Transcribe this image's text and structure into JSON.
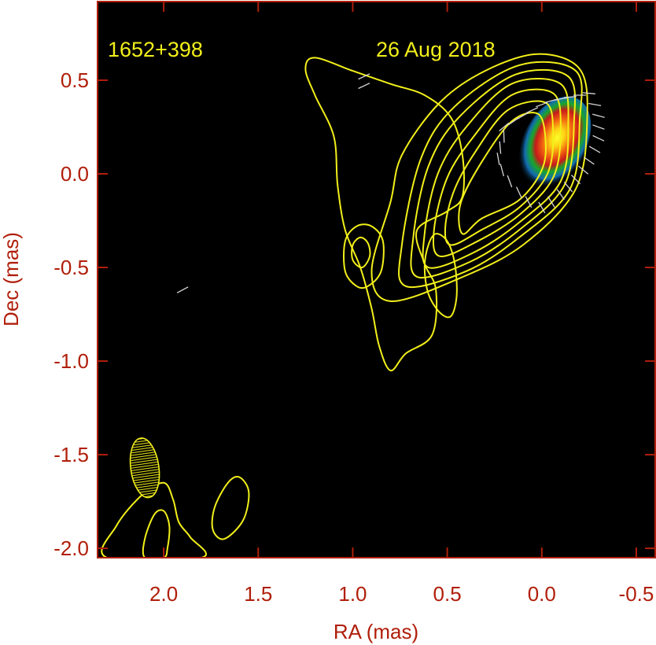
{
  "chart_data": {
    "type": "contour_map",
    "source_label": "1652+398",
    "date_label": "26 Aug 2018",
    "xlabel": "RA (mas)",
    "ylabel": "Dec (mas)",
    "xlim": [
      2.35,
      -0.6
    ],
    "ylim": [
      -2.05,
      0.92
    ],
    "x_ticks": [
      {
        "value": 2.0,
        "label": "2.0"
      },
      {
        "value": 1.5,
        "label": "1.5"
      },
      {
        "value": 1.0,
        "label": "1.0"
      },
      {
        "value": 0.5,
        "label": "0.5"
      },
      {
        "value": 0.0,
        "label": "0.0"
      },
      {
        "value": -0.5,
        "label": "-0.5"
      }
    ],
    "y_ticks": [
      {
        "value": 0.5,
        "label": "0.5"
      },
      {
        "value": 0.0,
        "label": "0.0"
      },
      {
        "value": -0.5,
        "label": "-0.5"
      },
      {
        "value": -1.0,
        "label": "-1.0"
      },
      {
        "value": -1.5,
        "label": "-1.5"
      },
      {
        "value": -2.0,
        "label": "-2.0"
      }
    ],
    "core_peak": {
      "ra": -0.07,
      "dec": 0.17
    },
    "beam": {
      "ra": 2.1,
      "dec": -1.57,
      "major_mas": 0.32,
      "minor_mas": 0.15,
      "pa_deg": -8
    },
    "contours": [
      {
        "name": "core-contour-1",
        "points": [
          [
            0.42,
            -0.32
          ],
          [
            0.32,
            -0.24
          ],
          [
            0.12,
            -0.14
          ],
          [
            0.0,
            0.02
          ],
          [
            -0.02,
            0.18
          ],
          [
            0.02,
            0.32
          ],
          [
            0.16,
            0.28
          ],
          [
            0.32,
            0.06
          ],
          [
            0.43,
            -0.16
          ]
        ]
      },
      {
        "name": "core-contour-2",
        "points": [
          [
            0.48,
            -0.38
          ],
          [
            0.32,
            -0.3
          ],
          [
            0.12,
            -0.18
          ],
          [
            -0.03,
            0.0
          ],
          [
            -0.06,
            0.22
          ],
          [
            -0.02,
            0.38
          ],
          [
            0.18,
            0.34
          ],
          [
            0.35,
            0.12
          ],
          [
            0.46,
            -0.08
          ],
          [
            0.51,
            -0.28
          ]
        ]
      },
      {
        "name": "core-contour-3",
        "points": [
          [
            0.54,
            -0.44
          ],
          [
            0.34,
            -0.36
          ],
          [
            0.12,
            -0.22
          ],
          [
            -0.06,
            -0.02
          ],
          [
            -0.1,
            0.24
          ],
          [
            -0.06,
            0.43
          ],
          [
            0.16,
            0.42
          ],
          [
            0.36,
            0.2
          ],
          [
            0.5,
            -0.02
          ],
          [
            0.57,
            -0.3
          ]
        ]
      },
      {
        "name": "core-contour-4",
        "points": [
          [
            0.6,
            -0.5
          ],
          [
            0.36,
            -0.42
          ],
          [
            0.12,
            -0.26
          ],
          [
            -0.1,
            -0.04
          ],
          [
            -0.14,
            0.26
          ],
          [
            -0.1,
            0.48
          ],
          [
            0.16,
            0.48
          ],
          [
            0.4,
            0.25
          ],
          [
            0.55,
            0.0
          ],
          [
            0.62,
            -0.32
          ]
        ]
      },
      {
        "name": "core-contour-5",
        "points": [
          [
            0.66,
            -0.55
          ],
          [
            0.38,
            -0.47
          ],
          [
            0.12,
            -0.3
          ],
          [
            -0.12,
            -0.06
          ],
          [
            -0.17,
            0.27
          ],
          [
            -0.14,
            0.52
          ],
          [
            0.14,
            0.53
          ],
          [
            0.44,
            0.3
          ],
          [
            0.6,
            0.04
          ],
          [
            0.68,
            -0.34
          ]
        ]
      },
      {
        "name": "core-contour-6",
        "points": [
          [
            0.72,
            -0.6
          ],
          [
            0.4,
            -0.52
          ],
          [
            0.12,
            -0.34
          ],
          [
            -0.15,
            -0.08
          ],
          [
            -0.2,
            0.28
          ],
          [
            -0.18,
            0.55
          ],
          [
            0.12,
            0.58
          ],
          [
            0.46,
            0.36
          ],
          [
            0.64,
            0.08
          ],
          [
            0.74,
            -0.38
          ]
        ]
      },
      {
        "name": "core-contour-7",
        "points": [
          [
            0.8,
            -0.68
          ],
          [
            0.44,
            -0.56
          ],
          [
            0.1,
            -0.38
          ],
          [
            -0.18,
            -0.08
          ],
          [
            -0.24,
            0.3
          ],
          [
            -0.2,
            0.56
          ],
          [
            0.02,
            0.64
          ],
          [
            0.3,
            0.55
          ],
          [
            0.54,
            0.38
          ],
          [
            0.74,
            0.1
          ],
          [
            0.8,
            -0.15
          ],
          [
            0.9,
            -0.52
          ]
        ]
      },
      {
        "name": "outer-jet-contour",
        "points": [
          [
            0.8,
            -1.05
          ],
          [
            0.72,
            -0.96
          ],
          [
            0.58,
            -0.86
          ],
          [
            0.56,
            -0.62
          ],
          [
            0.62,
            -0.48
          ],
          [
            0.66,
            -0.3
          ],
          [
            0.5,
            -0.2
          ],
          [
            0.42,
            -0.12
          ],
          [
            0.42,
            0.1
          ],
          [
            0.48,
            0.3
          ],
          [
            0.62,
            0.42
          ],
          [
            0.8,
            0.48
          ],
          [
            1.0,
            0.55
          ],
          [
            1.2,
            0.62
          ],
          [
            1.25,
            0.56
          ],
          [
            1.2,
            0.42
          ],
          [
            1.1,
            0.2
          ],
          [
            1.08,
            -0.06
          ],
          [
            1.04,
            -0.3
          ],
          [
            0.96,
            -0.5
          ],
          [
            0.9,
            -0.72
          ],
          [
            0.86,
            -0.92
          ]
        ]
      },
      {
        "name": "jet-inner-contour",
        "points": [
          [
            0.45,
            -0.65
          ],
          [
            0.46,
            -0.48
          ],
          [
            0.5,
            -0.36
          ],
          [
            0.56,
            -0.32
          ],
          [
            0.6,
            -0.38
          ],
          [
            0.62,
            -0.5
          ],
          [
            0.6,
            -0.64
          ],
          [
            0.54,
            -0.74
          ],
          [
            0.48,
            -0.76
          ]
        ]
      },
      {
        "name": "knot-contour-outer",
        "points": [
          [
            0.92,
            -0.6
          ],
          [
            0.85,
            -0.52
          ],
          [
            0.84,
            -0.36
          ],
          [
            0.9,
            -0.28
          ],
          [
            0.98,
            -0.28
          ],
          [
            1.04,
            -0.36
          ],
          [
            1.04,
            -0.52
          ],
          [
            0.98,
            -0.6
          ]
        ]
      },
      {
        "name": "knot-contour-inner",
        "points": [
          [
            0.95,
            -0.5
          ],
          [
            0.91,
            -0.44
          ],
          [
            0.92,
            -0.37
          ],
          [
            0.96,
            -0.34
          ],
          [
            1.0,
            -0.38
          ],
          [
            1.0,
            -0.46
          ]
        ]
      },
      {
        "name": "southwest-contour-outer",
        "points": [
          [
            2.3,
            -2.05
          ],
          [
            2.25,
            -1.88
          ],
          [
            2.12,
            -1.72
          ],
          [
            2.0,
            -1.65
          ],
          [
            1.95,
            -1.74
          ],
          [
            1.92,
            -1.86
          ],
          [
            1.86,
            -1.94
          ],
          [
            1.8,
            -2.05
          ]
        ]
      },
      {
        "name": "southwest-contour-inner",
        "points": [
          [
            2.1,
            -2.05
          ],
          [
            2.1,
            -1.95
          ],
          [
            2.05,
            -1.82
          ],
          [
            2.0,
            -1.8
          ],
          [
            1.97,
            -1.88
          ],
          [
            1.98,
            -2.0
          ],
          [
            2.0,
            -2.05
          ]
        ]
      },
      {
        "name": "southwest-contour-knot",
        "points": [
          [
            1.68,
            -1.95
          ],
          [
            1.58,
            -1.85
          ],
          [
            1.55,
            -1.7
          ],
          [
            1.6,
            -1.62
          ],
          [
            1.66,
            -1.65
          ],
          [
            1.73,
            -1.78
          ],
          [
            1.74,
            -1.9
          ]
        ]
      }
    ],
    "evpa_vectors": [
      {
        "ra": 0.2,
        "dec": 0.25,
        "angle_deg": 40
      },
      {
        "ra": 0.15,
        "dec": 0.28,
        "angle_deg": 35
      },
      {
        "ra": 0.1,
        "dec": 0.31,
        "angle_deg": 30
      },
      {
        "ra": 0.05,
        "dec": 0.34,
        "angle_deg": 25
      },
      {
        "ra": 0.0,
        "dec": 0.37,
        "angle_deg": 20
      },
      {
        "ra": -0.05,
        "dec": 0.39,
        "angle_deg": 15
      },
      {
        "ra": -0.1,
        "dec": 0.4,
        "angle_deg": 10
      },
      {
        "ra": -0.15,
        "dec": 0.41,
        "angle_deg": 5
      },
      {
        "ra": -0.2,
        "dec": 0.42,
        "angle_deg": 0
      },
      {
        "ra": -0.25,
        "dec": 0.43,
        "angle_deg": -5
      },
      {
        "ra": -0.28,
        "dec": 0.37,
        "angle_deg": -10
      },
      {
        "ra": -0.3,
        "dec": 0.31,
        "angle_deg": -15
      },
      {
        "ra": -0.3,
        "dec": 0.25,
        "angle_deg": -20
      },
      {
        "ra": -0.3,
        "dec": 0.19,
        "angle_deg": -25
      },
      {
        "ra": -0.28,
        "dec": 0.13,
        "angle_deg": -30
      },
      {
        "ra": -0.25,
        "dec": 0.07,
        "angle_deg": -35
      },
      {
        "ra": -0.22,
        "dec": 0.02,
        "angle_deg": -40
      },
      {
        "ra": -0.18,
        "dec": -0.03,
        "angle_deg": -45
      },
      {
        "ra": -0.14,
        "dec": -0.07,
        "angle_deg": -50
      },
      {
        "ra": -0.1,
        "dec": -0.11,
        "angle_deg": -55
      },
      {
        "ra": -0.05,
        "dec": -0.15,
        "angle_deg": -58
      },
      {
        "ra": 0.0,
        "dec": -0.18,
        "angle_deg": -60
      },
      {
        "ra": 0.07,
        "dec": -0.15,
        "angle_deg": -62
      },
      {
        "ra": 0.12,
        "dec": -0.1,
        "angle_deg": -65
      },
      {
        "ra": 0.17,
        "dec": -0.04,
        "angle_deg": -70
      },
      {
        "ra": 0.21,
        "dec": 0.02,
        "angle_deg": -75
      },
      {
        "ra": 0.23,
        "dec": 0.08,
        "angle_deg": -80
      },
      {
        "ra": 0.22,
        "dec": 0.14,
        "angle_deg": -85
      },
      {
        "ra": 0.2,
        "dec": 0.2,
        "angle_deg": -88
      },
      {
        "ra": 0.94,
        "dec": 0.52,
        "angle_deg": 25
      },
      {
        "ra": 0.94,
        "dec": 0.47,
        "angle_deg": 25
      },
      {
        "ra": 1.9,
        "dec": -0.62,
        "angle_deg": 28
      }
    ],
    "colors": {
      "background_frame": "#ffffff",
      "plot_background": "#000000",
      "axis": "#b01e0a",
      "contour": "#f2ef1a",
      "annotation_text": "#f2ef1a",
      "evpa": "#d8d8d8"
    }
  }
}
